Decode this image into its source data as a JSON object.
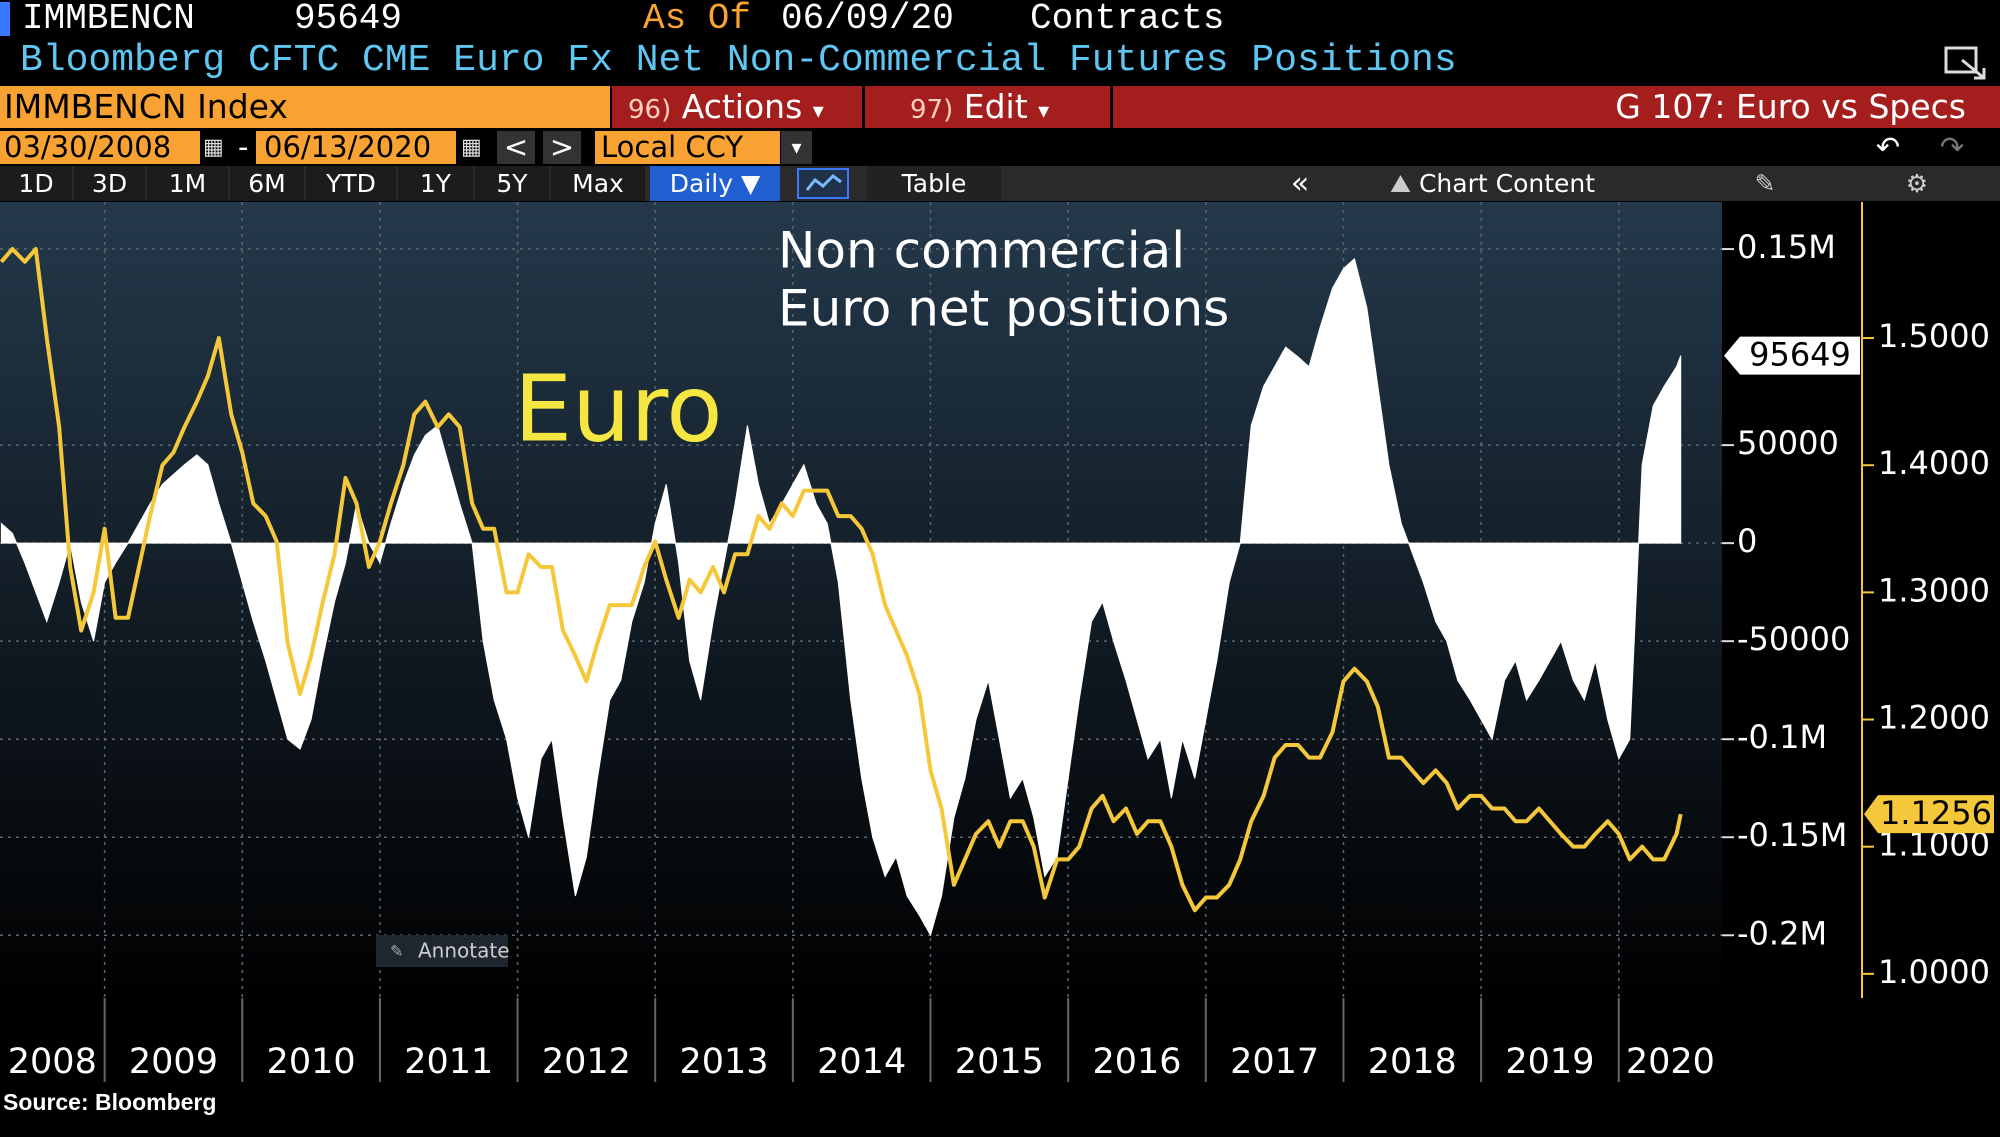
{
  "header": {
    "ticker": "IMMBENCN",
    "last": "95649",
    "as_of_label": "As Of",
    "as_of": "06/09/20",
    "units": "Contracts",
    "description": "Bloomberg CFTC CME Euro Fx Net Non-Commercial Futures Positions"
  },
  "toolbar": {
    "security": "IMMBENCN Index",
    "actions_num": "96)",
    "actions": "Actions",
    "edit_num": "97)",
    "edit": "Edit",
    "chart_name": "G 107: Euro vs Specs",
    "start_date": "03/30/2008",
    "date_separator": "-",
    "end_date": "06/13/2020",
    "currency": "Local CCY",
    "periods": [
      "1D",
      "3D",
      "1M",
      "6M",
      "YTD",
      "1Y",
      "5Y",
      "Max"
    ],
    "frequency": "Daily",
    "table": "Table",
    "chart_content": "Chart Content",
    "annotate": "Annotate"
  },
  "chart_data": {
    "type": "area-line",
    "annotations": [
      "Non commercial",
      "Euro net positions"
    ],
    "source": "Source: Bloomberg",
    "x": [
      2008.25,
      2008.33,
      2008.42,
      2008.5,
      2008.58,
      2008.67,
      2008.75,
      2008.83,
      2008.92,
      2009.0,
      2009.08,
      2009.17,
      2009.25,
      2009.33,
      2009.42,
      2009.5,
      2009.58,
      2009.67,
      2009.75,
      2009.83,
      2009.92,
      2010.0,
      2010.08,
      2010.17,
      2010.25,
      2010.33,
      2010.42,
      2010.5,
      2010.58,
      2010.67,
      2010.75,
      2010.83,
      2010.92,
      2011.0,
      2011.08,
      2011.17,
      2011.25,
      2011.33,
      2011.42,
      2011.5,
      2011.58,
      2011.67,
      2011.75,
      2011.83,
      2011.92,
      2012.0,
      2012.08,
      2012.17,
      2012.25,
      2012.33,
      2012.42,
      2012.5,
      2012.58,
      2012.67,
      2012.75,
      2012.83,
      2012.92,
      2013.0,
      2013.08,
      2013.17,
      2013.25,
      2013.33,
      2013.42,
      2013.5,
      2013.58,
      2013.67,
      2013.75,
      2013.83,
      2013.92,
      2014.0,
      2014.08,
      2014.17,
      2014.25,
      2014.33,
      2014.42,
      2014.5,
      2014.58,
      2014.67,
      2014.75,
      2014.83,
      2014.92,
      2015.0,
      2015.08,
      2015.17,
      2015.25,
      2015.33,
      2015.42,
      2015.5,
      2015.58,
      2015.67,
      2015.75,
      2015.83,
      2015.92,
      2016.0,
      2016.08,
      2016.17,
      2016.25,
      2016.33,
      2016.42,
      2016.5,
      2016.58,
      2016.67,
      2016.75,
      2016.83,
      2016.92,
      2017.0,
      2017.08,
      2017.17,
      2017.25,
      2017.33,
      2017.42,
      2017.5,
      2017.58,
      2017.67,
      2017.75,
      2017.83,
      2017.92,
      2018.0,
      2018.08,
      2018.17,
      2018.25,
      2018.33,
      2018.42,
      2018.5,
      2018.58,
      2018.67,
      2018.75,
      2018.83,
      2018.92,
      2019.0,
      2019.08,
      2019.17,
      2019.25,
      2019.33,
      2019.42,
      2019.5,
      2019.58,
      2019.67,
      2019.75,
      2019.83,
      2019.92,
      2020.0,
      2020.08,
      2020.17,
      2020.25,
      2020.33,
      2020.42,
      2020.45
    ],
    "series": [
      {
        "color": "#ffffff",
        "axis": "y",
        "values": [
          10000,
          5000,
          -10000,
          -25000,
          -40000,
          -20000,
          0,
          -30000,
          -50000,
          -20000,
          -10000,
          0,
          10000,
          20000,
          30000,
          35000,
          40000,
          45000,
          40000,
          20000,
          0,
          -20000,
          -40000,
          -60000,
          -80000,
          -100000,
          -105000,
          -90000,
          -60000,
          -30000,
          -10000,
          20000,
          0,
          -10000,
          10000,
          30000,
          45000,
          55000,
          60000,
          40000,
          20000,
          0,
          -50000,
          -80000,
          -100000,
          -130000,
          -150000,
          -110000,
          -100000,
          -140000,
          -180000,
          -160000,
          -120000,
          -80000,
          -70000,
          -40000,
          -20000,
          10000,
          30000,
          -10000,
          -60000,
          -80000,
          -40000,
          -10000,
          20000,
          60000,
          30000,
          10000,
          20000,
          30000,
          40000,
          20000,
          10000,
          -20000,
          -80000,
          -120000,
          -150000,
          -170000,
          -160000,
          -180000,
          -190000,
          -200000,
          -180000,
          -140000,
          -120000,
          -90000,
          -70000,
          -100000,
          -130000,
          -120000,
          -140000,
          -170000,
          -160000,
          -120000,
          -80000,
          -40000,
          -30000,
          -50000,
          -70000,
          -90000,
          -110000,
          -100000,
          -130000,
          -100000,
          -120000,
          -90000,
          -60000,
          -20000,
          0,
          60000,
          80000,
          90000,
          100000,
          95000,
          90000,
          110000,
          130000,
          140000,
          145000,
          120000,
          80000,
          40000,
          10000,
          -5000,
          -20000,
          -40000,
          -50000,
          -70000,
          -80000,
          -90000,
          -100000,
          -70000,
          -60000,
          -80000,
          -70000,
          -60000,
          -50000,
          -70000,
          -80000,
          -60000,
          -90000,
          -110000,
          -100000,
          40000,
          70000,
          80000,
          90000,
          95649
        ]
      },
      {
        "name": "Euro",
        "color": "#f5c83c",
        "axis": "y2",
        "values": [
          1.56,
          1.57,
          1.56,
          1.57,
          1.5,
          1.43,
          1.32,
          1.27,
          1.3,
          1.35,
          1.28,
          1.28,
          1.32,
          1.36,
          1.4,
          1.41,
          1.43,
          1.45,
          1.47,
          1.5,
          1.44,
          1.41,
          1.37,
          1.36,
          1.34,
          1.26,
          1.22,
          1.25,
          1.29,
          1.33,
          1.39,
          1.37,
          1.32,
          1.34,
          1.37,
          1.4,
          1.44,
          1.45,
          1.43,
          1.44,
          1.43,
          1.37,
          1.35,
          1.35,
          1.3,
          1.3,
          1.33,
          1.32,
          1.32,
          1.27,
          1.25,
          1.23,
          1.26,
          1.29,
          1.29,
          1.29,
          1.32,
          1.34,
          1.31,
          1.28,
          1.31,
          1.3,
          1.32,
          1.3,
          1.33,
          1.33,
          1.36,
          1.35,
          1.37,
          1.36,
          1.38,
          1.38,
          1.38,
          1.36,
          1.36,
          1.35,
          1.33,
          1.29,
          1.27,
          1.25,
          1.22,
          1.16,
          1.13,
          1.07,
          1.09,
          1.11,
          1.12,
          1.1,
          1.12,
          1.12,
          1.1,
          1.06,
          1.09,
          1.09,
          1.1,
          1.13,
          1.14,
          1.12,
          1.13,
          1.11,
          1.12,
          1.12,
          1.1,
          1.07,
          1.05,
          1.06,
          1.06,
          1.07,
          1.09,
          1.12,
          1.14,
          1.17,
          1.18,
          1.18,
          1.17,
          1.17,
          1.19,
          1.23,
          1.24,
          1.23,
          1.21,
          1.17,
          1.17,
          1.16,
          1.15,
          1.16,
          1.15,
          1.13,
          1.14,
          1.14,
          1.13,
          1.13,
          1.12,
          1.12,
          1.13,
          1.12,
          1.11,
          1.1,
          1.1,
          1.11,
          1.12,
          1.11,
          1.09,
          1.1,
          1.09,
          1.09,
          1.11,
          1.1256
        ]
      }
    ],
    "xlim": [
      2008.24,
      2020.75
    ],
    "xticks": [
      2008,
      2009,
      2010,
      2011,
      2012,
      2013,
      2014,
      2015,
      2016,
      2017,
      2018,
      2019,
      2020
    ],
    "ylim": [
      -232000,
      174000
    ],
    "yticks": [
      {
        "value": 150000,
        "label": "0.15M"
      },
      50000,
      0,
      -50000,
      {
        "value": -100000,
        "label": "-0.1M"
      },
      {
        "value": -150000,
        "label": "-0.15M"
      },
      {
        "value": -200000,
        "label": "-0.2M"
      }
    ],
    "y2lim": [
      0.981,
      1.607
    ],
    "y2ticks": [
      {
        "value": 1.0,
        "label": "1.0000"
      },
      {
        "value": 1.1,
        "label": "1.1000"
      },
      {
        "value": 1.2,
        "label": "1.2000"
      },
      {
        "value": 1.3,
        "label": "1.3000"
      },
      {
        "value": 1.4,
        "label": "1.4000"
      },
      {
        "value": 1.5,
        "label": "1.5000"
      }
    ],
    "grid": true
  }
}
